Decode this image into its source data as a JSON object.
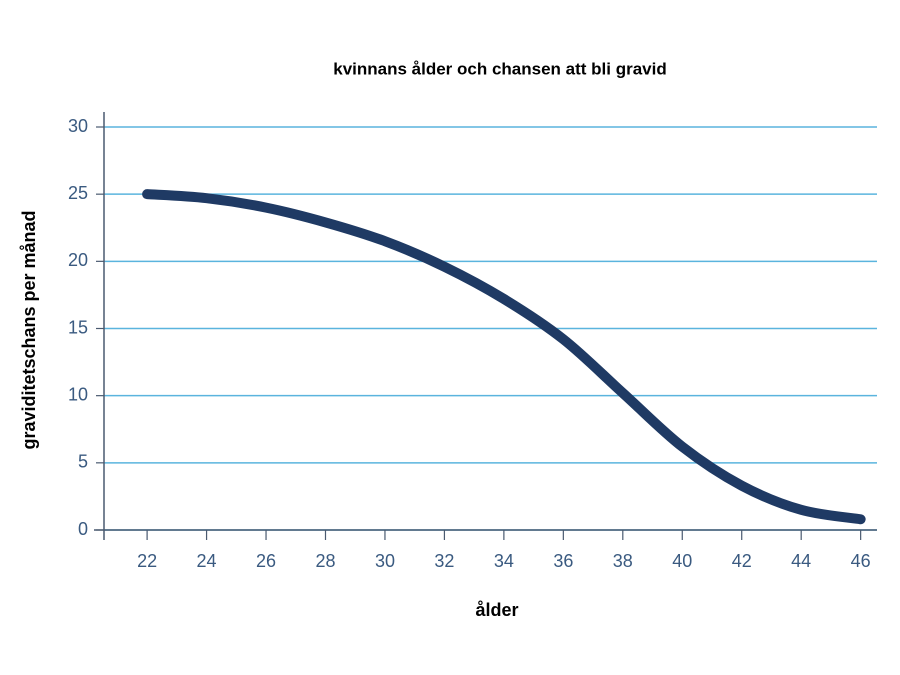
{
  "chart_data": {
    "type": "line",
    "title": "kvinnans ålder och chansen att bli gravid",
    "x_label": "ålder",
    "y_label": "graviditetschans per månad",
    "x": [
      22,
      24,
      26,
      28,
      30,
      32,
      34,
      36,
      38,
      40,
      42,
      44,
      46
    ],
    "series": [
      {
        "name": "graviditetschans",
        "color": "#1f3a64",
        "values": [
          25,
          24.7,
          24,
          22.9,
          21.5,
          19.6,
          17.2,
          14.2,
          10.2,
          6.2,
          3.3,
          1.5,
          0.8
        ]
      }
    ],
    "xlim": [
      20.55,
      46.55
    ],
    "ylim": [
      0,
      30
    ],
    "xticks": [
      22,
      24,
      26,
      28,
      30,
      32,
      34,
      36,
      38,
      40,
      42,
      44,
      46
    ],
    "yticks": [
      0,
      5,
      10,
      15,
      20,
      25,
      30
    ],
    "grid": true,
    "grid_color": "#5ab4de"
  }
}
